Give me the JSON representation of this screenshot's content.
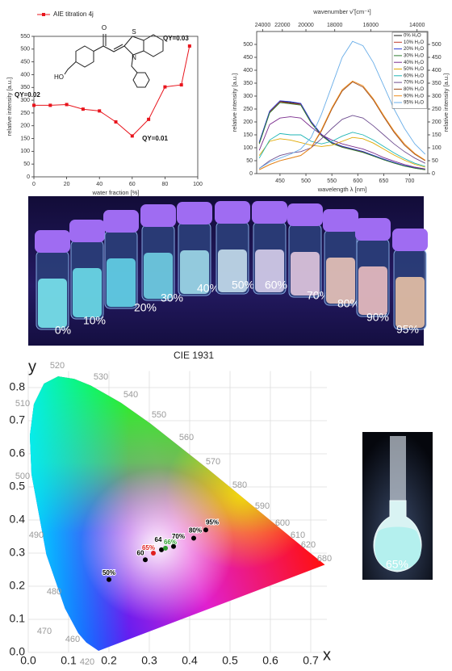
{
  "chart_data": [
    {
      "type": "line",
      "xlabel": "water fraction [%]",
      "ylabel": "relative intensity [a.u.]",
      "x": [
        0,
        10,
        20,
        30,
        40,
        50,
        60,
        70,
        80,
        90,
        95
      ],
      "series": [
        {
          "name": "AIE titration 4j",
          "color": "#e8141c",
          "values": [
            280,
            280,
            283,
            265,
            258,
            215,
            160,
            225,
            352,
            360,
            512
          ]
        }
      ],
      "xlim": [
        0,
        100
      ],
      "xticks": [
        0,
        20,
        40,
        60,
        80,
        100
      ],
      "ylim": [
        0,
        550
      ],
      "yticks": [
        0,
        50,
        100,
        150,
        200,
        250,
        300,
        350,
        400,
        450,
        500,
        550
      ],
      "annotations": [
        "QY=0.02",
        "QY=0.01",
        "QY=0.03"
      ],
      "structure_labels": [
        "O",
        "HO",
        "S",
        "N"
      ]
    },
    {
      "type": "line",
      "xlabel": "wavelength λ [nm]",
      "x2label": "wavenumber ν̃ [cm⁻¹]",
      "ylabel": "relative intensity [a.u.]",
      "x": [
        410,
        430,
        450,
        470,
        490,
        510,
        530,
        550,
        570,
        590,
        610,
        630,
        650,
        670,
        690,
        710,
        730
      ],
      "series": [
        {
          "name": "0% H₂O",
          "color": "#1a1a1a",
          "values": [
            120,
            240,
            280,
            275,
            270,
            200,
            150,
            120,
            105,
            95,
            85,
            70,
            55,
            42,
            30,
            22,
            15
          ]
        },
        {
          "name": "10% H₂O",
          "color": "#c0392b",
          "values": [
            118,
            238,
            278,
            272,
            268,
            198,
            148,
            118,
            103,
            93,
            83,
            68,
            54,
            41,
            30,
            22,
            15
          ]
        },
        {
          "name": "20% H₂O",
          "color": "#2b3bd6",
          "values": [
            122,
            242,
            282,
            278,
            272,
            202,
            152,
            121,
            106,
            96,
            86,
            71,
            56,
            43,
            31,
            23,
            16
          ]
        },
        {
          "name": "30% H₂O",
          "color": "#2e7d32",
          "values": [
            115,
            235,
            275,
            270,
            265,
            196,
            147,
            117,
            102,
            92,
            82,
            68,
            53,
            41,
            29,
            21,
            15
          ]
        },
        {
          "name": "40% H₂O",
          "color": "#7b2d8e",
          "values": [
            90,
            190,
            215,
            220,
            215,
            180,
            150,
            130,
            115,
            105,
            95,
            80,
            62,
            48,
            35,
            25,
            18
          ]
        },
        {
          "name": "50% H₂O",
          "color": "#e0a800",
          "values": [
            70,
            125,
            135,
            130,
            120,
            110,
            105,
            110,
            125,
            140,
            135,
            118,
            95,
            72,
            52,
            36,
            25
          ]
        },
        {
          "name": "60% H₂O",
          "color": "#1fb5b5",
          "values": [
            60,
            130,
            155,
            150,
            150,
            125,
            115,
            125,
            145,
            160,
            150,
            130,
            105,
            80,
            58,
            40,
            28
          ]
        },
        {
          "name": "70% H₂O",
          "color": "#6d4c8f",
          "values": [
            20,
            50,
            70,
            80,
            85,
            100,
            135,
            175,
            210,
            225,
            215,
            185,
            150,
            115,
            85,
            60,
            40
          ]
        },
        {
          "name": "80% H₂O",
          "color": "#9c4a1a",
          "values": [
            15,
            35,
            50,
            60,
            70,
            100,
            165,
            250,
            320,
            355,
            335,
            285,
            220,
            160,
            110,
            75,
            50
          ]
        },
        {
          "name": "90% H₂O",
          "color": "#ef8c1a",
          "values": [
            15,
            35,
            50,
            60,
            70,
            100,
            170,
            255,
            325,
            358,
            340,
            290,
            225,
            165,
            115,
            78,
            52
          ]
        },
        {
          "name": "95% H₂O",
          "color": "#6aaee8",
          "values": [
            20,
            45,
            60,
            75,
            95,
            140,
            230,
            340,
            450,
            512,
            495,
            430,
            340,
            250,
            175,
            115,
            75
          ]
        }
      ],
      "xlim": [
        405,
        735
      ],
      "xticks": [
        450,
        500,
        550,
        600,
        650,
        700
      ],
      "x2ticks": [
        24000,
        22000,
        20000,
        18000,
        16000,
        14000
      ],
      "ylim": [
        0,
        550
      ],
      "yticks": [
        0,
        50,
        100,
        150,
        200,
        250,
        300,
        350,
        400,
        450,
        500
      ],
      "legend": "upper right"
    },
    {
      "type": "scatter",
      "title": "CIE 1931",
      "xlabel": "x",
      "ylabel": "y",
      "x": [
        0.2,
        0.29,
        0.33,
        0.31,
        0.34,
        0.36,
        0.41,
        0.44
      ],
      "values": [
        0.22,
        0.28,
        0.31,
        0.3,
        0.315,
        0.32,
        0.345,
        0.37
      ],
      "point_labels": [
        "50%",
        "60",
        "64",
        "65%",
        "66%",
        "70%",
        "80%",
        "95%"
      ],
      "point_colors": [
        "#000000",
        "#000000",
        "#000000",
        "#e02020",
        "#2e9d2e",
        "#000000",
        "#000000",
        "#000000"
      ],
      "xlim": [
        0,
        0.74
      ],
      "xticks": [
        {
          "value": 0,
          "label": "0.0"
        },
        0.1,
        0.2,
        0.3,
        0.4,
        0.5,
        0.6,
        0.7
      ],
      "ylim": [
        0,
        0.85
      ],
      "yticks": [
        {
          "value": 0,
          "label": "0.0"
        },
        0.1,
        0.2,
        0.3,
        0.4,
        0.5,
        0.6,
        0.7,
        0.8
      ],
      "grid": true,
      "locus_labels": [
        520,
        510,
        500,
        490,
        480,
        470,
        460,
        420,
        530,
        540,
        550,
        560,
        570,
        580,
        590,
        600,
        610,
        620,
        680
      ]
    }
  ],
  "vial_photo": {
    "labels": [
      "0%",
      "10%",
      "20%",
      "30%",
      "40%",
      "50%",
      "60%",
      "70%",
      "80%",
      "90%",
      "95%"
    ]
  },
  "flask_photo": {
    "label": "65%"
  }
}
